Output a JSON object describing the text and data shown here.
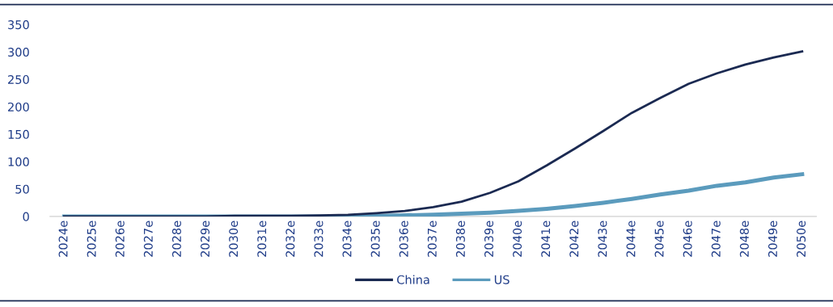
{
  "chart_data": {
    "type": "line",
    "categories": [
      "2024e",
      "2025e",
      "2026e",
      "2027e",
      "2028e",
      "2029e",
      "2030e",
      "2031e",
      "2032e",
      "2033e",
      "2034e",
      "2035e",
      "2036e",
      "2037e",
      "2038e",
      "2039e",
      "2040e",
      "2041e",
      "2042e",
      "2043e",
      "2044e",
      "2045e",
      "2046e",
      "2047e",
      "2048e",
      "2049e",
      "2050e"
    ],
    "series": [
      {
        "name": "China",
        "color": "#1b2a52",
        "values": [
          0,
          0,
          0,
          0,
          0,
          0,
          1,
          1,
          1,
          2,
          3,
          6,
          10,
          17,
          27,
          43,
          64,
          93,
          124,
          156,
          189,
          216,
          242,
          261,
          277,
          290,
          301
        ]
      },
      {
        "name": "US",
        "color": "#5b9bbd",
        "values": [
          0,
          0,
          0,
          0,
          0,
          0,
          0,
          0,
          0,
          0,
          0,
          1,
          2,
          3,
          5,
          7,
          10,
          14,
          19,
          25,
          32,
          40,
          47,
          56,
          62,
          71,
          77
        ]
      }
    ],
    "ylim": [
      0,
      350
    ],
    "yticks": [
      0,
      50,
      100,
      150,
      200,
      250,
      300,
      350
    ],
    "grid": false,
    "legend": "bottom",
    "marker": "none",
    "line_style": "solid"
  }
}
